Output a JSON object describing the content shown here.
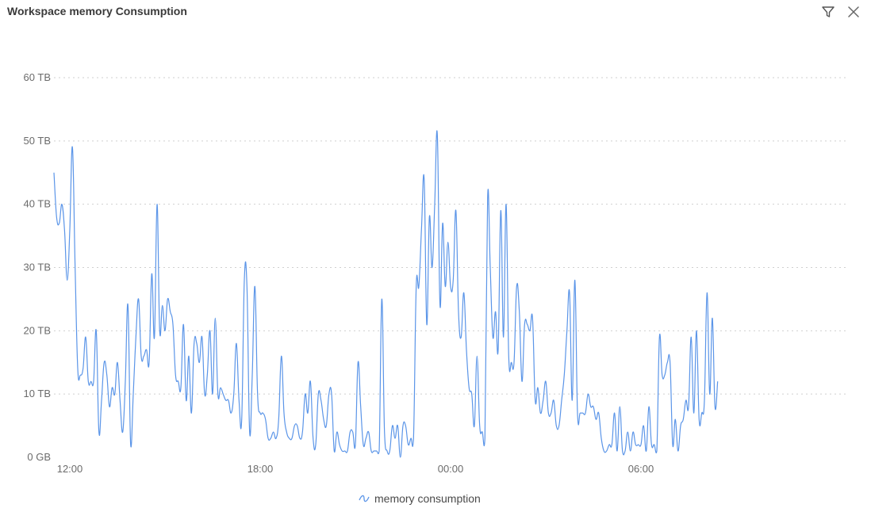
{
  "panel": {
    "title": "Workspace memory Consumption",
    "icons": {
      "filter": "filter-icon",
      "close": "close-icon"
    }
  },
  "legend": {
    "label": "memory consumption",
    "icon": "line-series-icon"
  },
  "colors": {
    "line": "#5b95e8",
    "grid": "#cfcfcf",
    "tick": "#6b6b6b"
  },
  "chart_data": {
    "type": "line",
    "title": "Workspace memory Consumption",
    "xlabel": "",
    "ylabel": "",
    "x_start_label": "11:30",
    "x_interval_minutes": 5,
    "x_ticks": [
      "12:00",
      "18:00",
      "00:00",
      "06:00"
    ],
    "y_ticks": [
      "0 GB",
      "10 TB",
      "20 TB",
      "30 TB",
      "40 TB",
      "50 TB",
      "60 TB"
    ],
    "ylim": [
      0,
      60
    ],
    "y_unit": "TB",
    "grid": "horizontal-dotted",
    "legend_position": "bottom-center",
    "series": [
      {
        "name": "memory consumption",
        "values": [
          45,
          38,
          37,
          40,
          36,
          28,
          36,
          49,
          30,
          14,
          13,
          14,
          19,
          12,
          12,
          12,
          20,
          4,
          9,
          15,
          13,
          8,
          11,
          10,
          15,
          9,
          4,
          12,
          24,
          2,
          10,
          19,
          25,
          16,
          16,
          17,
          15,
          29,
          19,
          40,
          20,
          24,
          20,
          25,
          23,
          21,
          13,
          12,
          11,
          21,
          9,
          16,
          7,
          18,
          18,
          15,
          19,
          10,
          13,
          20,
          10,
          22,
          10,
          11,
          10,
          9,
          9,
          7,
          10,
          18,
          9,
          6,
          28,
          27,
          4,
          13,
          27,
          10,
          7,
          7,
          6,
          3,
          3,
          4,
          3,
          6,
          16,
          7,
          4,
          3,
          3,
          5,
          5,
          3,
          4,
          10,
          7,
          12,
          3,
          2,
          10,
          9,
          6,
          5,
          10,
          10,
          1,
          4,
          2,
          1,
          1,
          1,
          4,
          4,
          2,
          15,
          8,
          2,
          3,
          4,
          1,
          1,
          1,
          1,
          25,
          4,
          1,
          1,
          5,
          3,
          5,
          0,
          5,
          5,
          2,
          3,
          3,
          27,
          27,
          36,
          44,
          21,
          38,
          30,
          40,
          51,
          24,
          37,
          27,
          34,
          27,
          28,
          39,
          23,
          19,
          26,
          17,
          11,
          10,
          5,
          16,
          5,
          4,
          3,
          41,
          30,
          19,
          23,
          17,
          39,
          19,
          40,
          16,
          15,
          15,
          27,
          23,
          12,
          21,
          21,
          20,
          22,
          9,
          11,
          7,
          9,
          12,
          7,
          7,
          9,
          5,
          5,
          9,
          13,
          20,
          26,
          9,
          28,
          7,
          7,
          7,
          7,
          10,
          8,
          8,
          6,
          7,
          3,
          1,
          1,
          2,
          2,
          7,
          1,
          8,
          1,
          1,
          4,
          1,
          4,
          2,
          2,
          2,
          5,
          1,
          8,
          2,
          2,
          1,
          19,
          13,
          13,
          15,
          15,
          2,
          6,
          1,
          5,
          6,
          9,
          8,
          19,
          7,
          20,
          6,
          7,
          9,
          26,
          10,
          22,
          8,
          12
        ]
      }
    ]
  }
}
